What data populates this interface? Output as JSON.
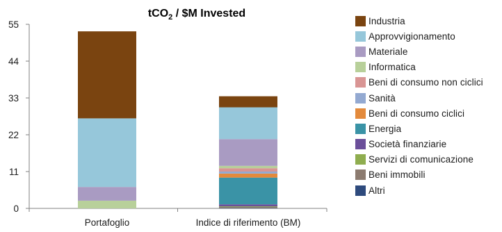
{
  "chart_data": {
    "type": "bar",
    "stacked": true,
    "title": "tCO",
    "title_sub": "2",
    "title_suffix": " / $M Invested",
    "xlabel": "",
    "ylabel": "",
    "categories": [
      "Portafoglio",
      "Indice di riferimento (BM)"
    ],
    "ylim": [
      0,
      55
    ],
    "yticks": [
      0,
      11,
      22,
      33,
      44,
      55
    ],
    "ytick_labels": [
      "0",
      "11",
      "22",
      "33",
      "44",
      "55"
    ],
    "grid": false,
    "legend_position": "right",
    "series": [
      {
        "name": "Altri",
        "color": "#2e4a7d",
        "values": [
          0,
          0.1
        ]
      },
      {
        "name": "Beni immobili",
        "color": "#8c7b70",
        "values": [
          0,
          0.3
        ]
      },
      {
        "name": "Servizi di comunicazione",
        "color": "#8fad4f",
        "values": [
          0,
          0.2
        ]
      },
      {
        "name": "Società finanziarie",
        "color": "#6b4f9a",
        "values": [
          0,
          0.6
        ]
      },
      {
        "name": "Energia",
        "color": "#3a93a6",
        "values": [
          0,
          8.0
        ]
      },
      {
        "name": "Beni di consumo ciclici",
        "color": "#e38a3c",
        "values": [
          0,
          1.2
        ]
      },
      {
        "name": "Sanità",
        "color": "#93a9d1",
        "values": [
          0,
          0.6
        ]
      },
      {
        "name": "Beni di consumo non ciclici",
        "color": "#d99594",
        "values": [
          0,
          1.0
        ]
      },
      {
        "name": "Informatica",
        "color": "#b8d09a",
        "values": [
          2.3,
          0.7
        ]
      },
      {
        "name": "Materiale",
        "color": "#a99bc2",
        "values": [
          4.1,
          8.0
        ]
      },
      {
        "name": "Approvvigionamento",
        "color": "#96c7da",
        "values": [
          20.5,
          9.5
        ]
      },
      {
        "name": "Industria",
        "color": "#7a4410",
        "values": [
          26.0,
          3.3
        ]
      }
    ]
  }
}
